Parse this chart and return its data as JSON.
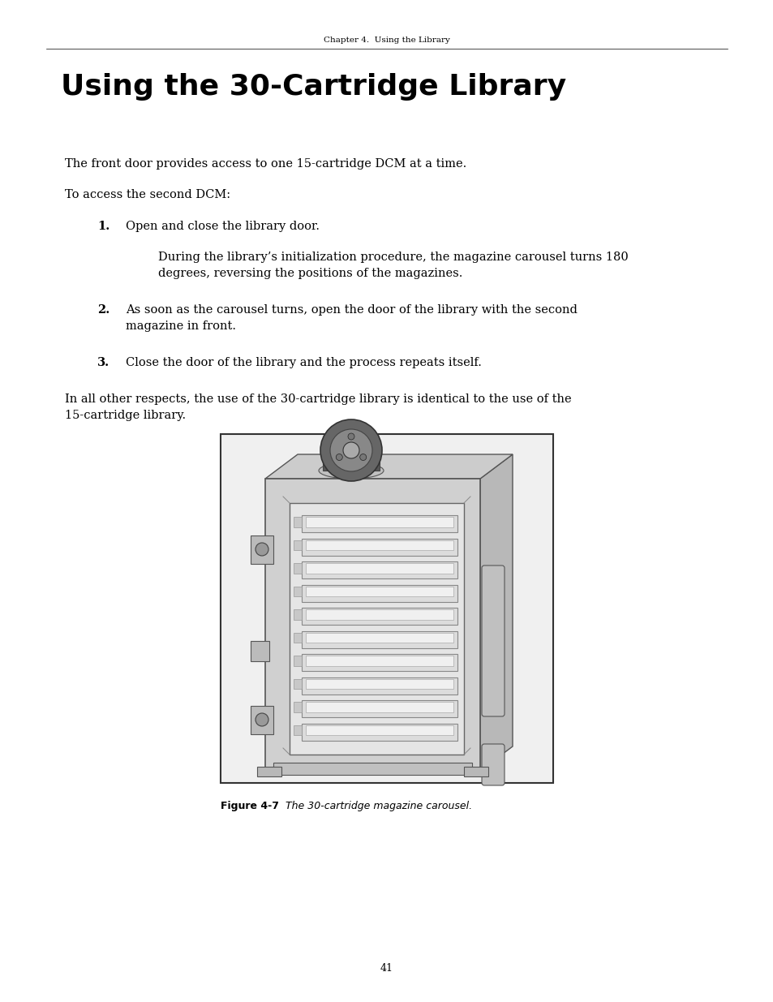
{
  "page_bg": "#ffffff",
  "page_width": 9.54,
  "page_height": 12.35,
  "header_text": "Chapter 4.  Using the Library",
  "header_fontsize": 7.5,
  "title": "Using the 30-Cartridge Library",
  "title_fontsize": 26,
  "body_fontsize": 10.5,
  "body_color": "#000000",
  "para1": "The front door provides access to one 15-cartridge DCM at a time.",
  "para2": "To access the second DCM:",
  "step1_num": "1.",
  "step1_text": "Open and close the library door.",
  "step1a_line1": "During the library’s initialization procedure, the magazine carousel turns 180",
  "step1a_line2": "degrees, reversing the positions of the magazines.",
  "step2_num": "2.",
  "step2_line1": "As soon as the carousel turns, open the door of the library with the second",
  "step2_line2": "magazine in front.",
  "step3_num": "3.",
  "step3_text": "Close the door of the library and the process repeats itself.",
  "para3_line1": "In all other respects, the use of the 30-cartridge library is identical to the use of the",
  "para3_line2": "15-cartridge library.",
  "fig_caption_bold": "Figure 4-7",
  "fig_caption_italic": "  The 30-cartridge magazine carousel.",
  "page_num": "41"
}
